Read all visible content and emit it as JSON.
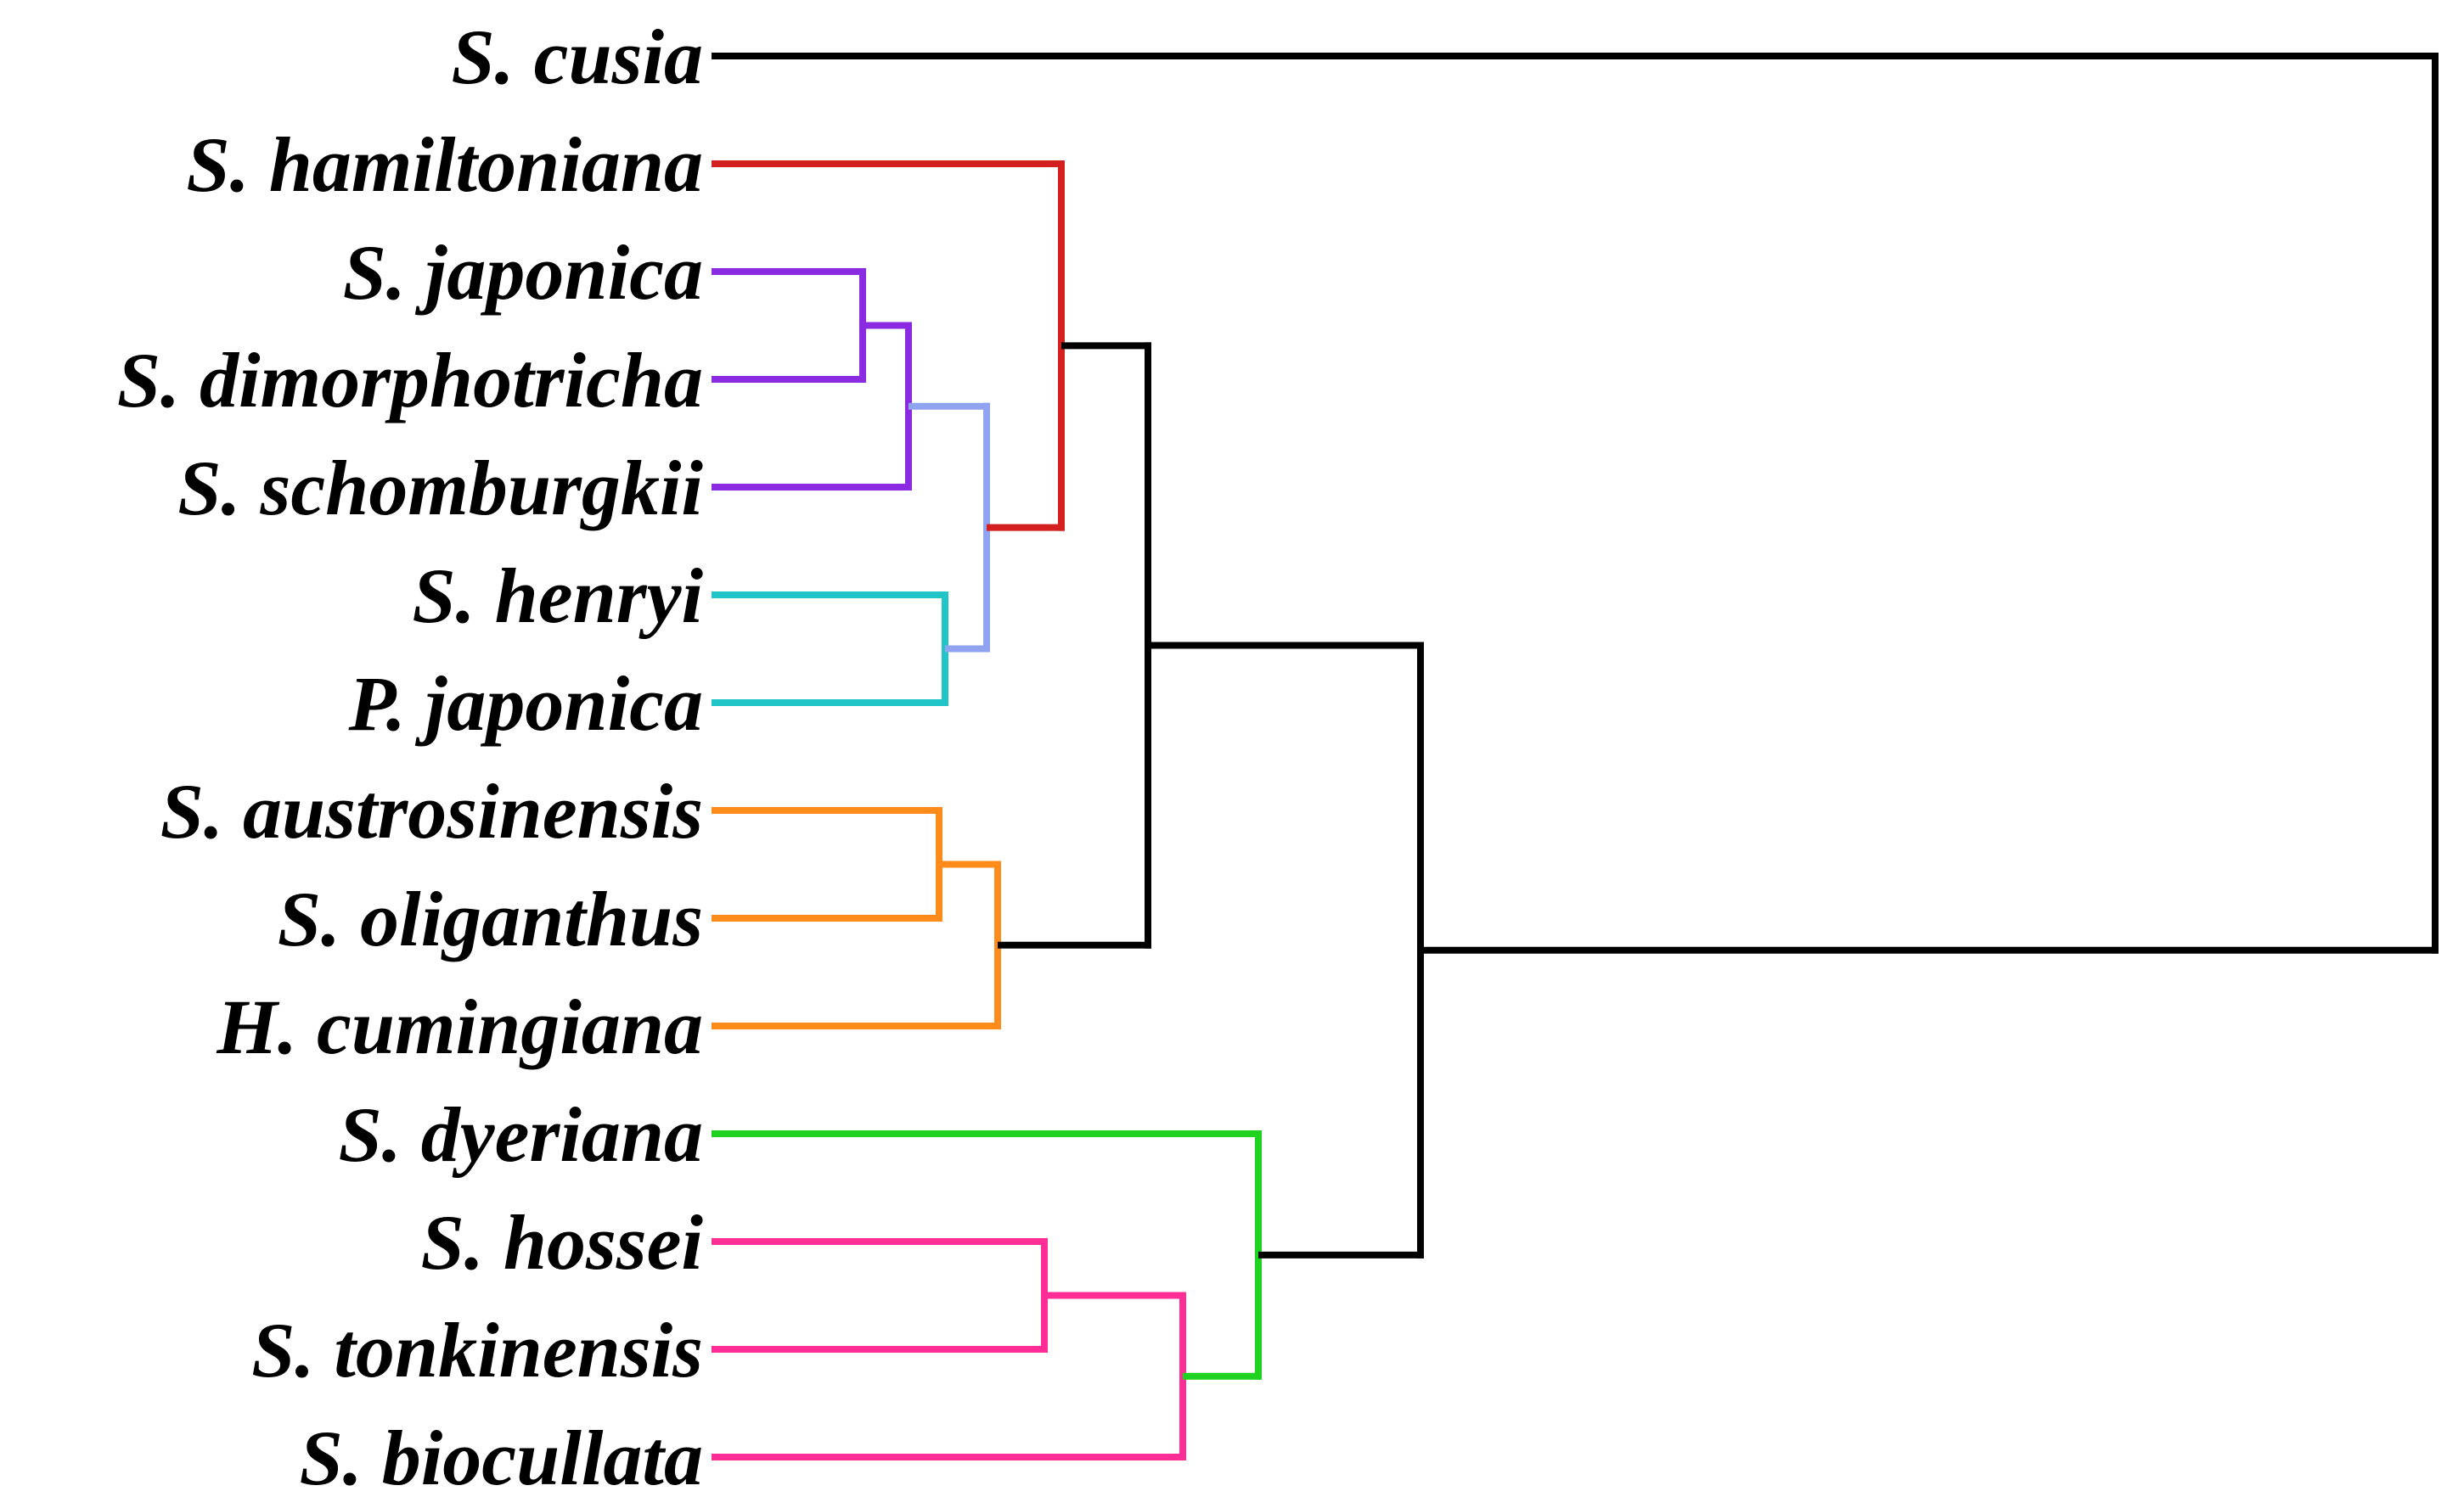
{
  "leaves": [
    "S. cusia",
    "S. hamiltoniana",
    "S. japonica",
    "S. dimorphotricha",
    "S. schomburgkii",
    "S. henryi",
    "P. japonica",
    "S. austrosinensis",
    "S. oliganthus",
    "H. cumingiana",
    "S. dyeriana",
    "S. hossei",
    "S. tonkinensis",
    "S. biocullata"
  ],
  "colors": {
    "black": "#000000",
    "red": "#d41f1f",
    "purple": "#8a2be2",
    "periwinkle": "#8fa3f0",
    "cyan": "#21c5c8",
    "orange": "#ff8c1a",
    "green": "#1fd21f",
    "pink": "#ff2d96"
  },
  "tree": {
    "color": "black",
    "children": [
      {
        "leaf": 0
      },
      {
        "color": "black",
        "children": [
          {
            "color": "black",
            "children": [
              {
                "color": "red",
                "children": [
                  {
                    "leaf": 1
                  },
                  {
                    "color": "periwinkle",
                    "children": [
                      {
                        "color": "purple",
                        "children": [
                          {
                            "color": "purple",
                            "children": [
                              {
                                "leaf": 2
                              },
                              {
                                "leaf": 3
                              }
                            ]
                          },
                          {
                            "leaf": 4
                          }
                        ]
                      },
                      {
                        "color": "cyan",
                        "children": [
                          {
                            "leaf": 5
                          },
                          {
                            "leaf": 6
                          }
                        ]
                      }
                    ]
                  }
                ]
              },
              {
                "color": "orange",
                "children": [
                  {
                    "color": "orange",
                    "children": [
                      {
                        "leaf": 7
                      },
                      {
                        "leaf": 8
                      }
                    ]
                  },
                  {
                    "leaf": 9
                  }
                ]
              }
            ]
          },
          {
            "color": "green",
            "children": [
              {
                "leaf": 10
              },
              {
                "color": "pink",
                "children": [
                  {
                    "color": "pink",
                    "children": [
                      {
                        "leaf": 11
                      },
                      {
                        "leaf": 12
                      }
                    ]
                  },
                  {
                    "leaf": 13
                  }
                ]
              }
            ]
          }
        ]
      }
    ]
  }
}
